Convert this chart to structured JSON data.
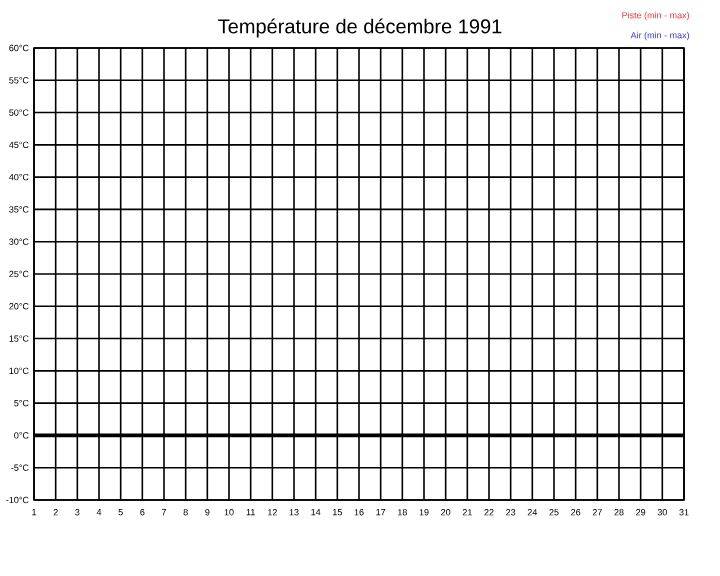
{
  "chart_data": {
    "type": "line",
    "title": "Température de décembre 1991",
    "series": [
      {
        "name": "Piste (min - max)",
        "color": "#ff3333",
        "values": [
          null,
          null,
          null,
          null,
          null,
          null,
          null,
          null,
          null,
          null,
          null,
          null,
          null,
          null,
          null,
          null,
          null,
          null,
          null,
          null,
          null,
          null,
          null,
          null,
          null,
          null,
          null,
          null,
          null,
          null,
          null
        ]
      },
      {
        "name": "Air (min - max)",
        "color": "#3333ff",
        "values": [
          null,
          null,
          null,
          null,
          null,
          null,
          null,
          null,
          null,
          null,
          null,
          null,
          null,
          null,
          null,
          null,
          null,
          null,
          null,
          null,
          null,
          null,
          null,
          null,
          null,
          null,
          null,
          null,
          null,
          null,
          null
        ]
      }
    ],
    "categories": [
      "1",
      "2",
      "3",
      "4",
      "5",
      "6",
      "7",
      "8",
      "9",
      "10",
      "11",
      "12",
      "13",
      "14",
      "15",
      "16",
      "17",
      "18",
      "19",
      "20",
      "21",
      "22",
      "23",
      "24",
      "25",
      "26",
      "27",
      "28",
      "29",
      "30",
      "31"
    ],
    "ylim": [
      -10,
      60
    ],
    "yticks": [
      {
        "value": -10,
        "label": "-10°C"
      },
      {
        "value": -5,
        "label": "-5°C"
      },
      {
        "value": 0,
        "label": "0°C"
      },
      {
        "value": 5,
        "label": "5°C"
      },
      {
        "value": 10,
        "label": "10°C"
      },
      {
        "value": 15,
        "label": "15°C"
      },
      {
        "value": 20,
        "label": "20°C"
      },
      {
        "value": 25,
        "label": "25°C"
      },
      {
        "value": 30,
        "label": "30°C"
      },
      {
        "value": 35,
        "label": "35°C"
      },
      {
        "value": 40,
        "label": "40°C"
      },
      {
        "value": 45,
        "label": "45°C"
      },
      {
        "value": 50,
        "label": "50°C"
      },
      {
        "value": 55,
        "label": "55°C"
      },
      {
        "value": 60,
        "label": "60°C"
      }
    ],
    "ref_lines": [
      {
        "axis": "y",
        "value": 0
      }
    ],
    "grid": true
  }
}
